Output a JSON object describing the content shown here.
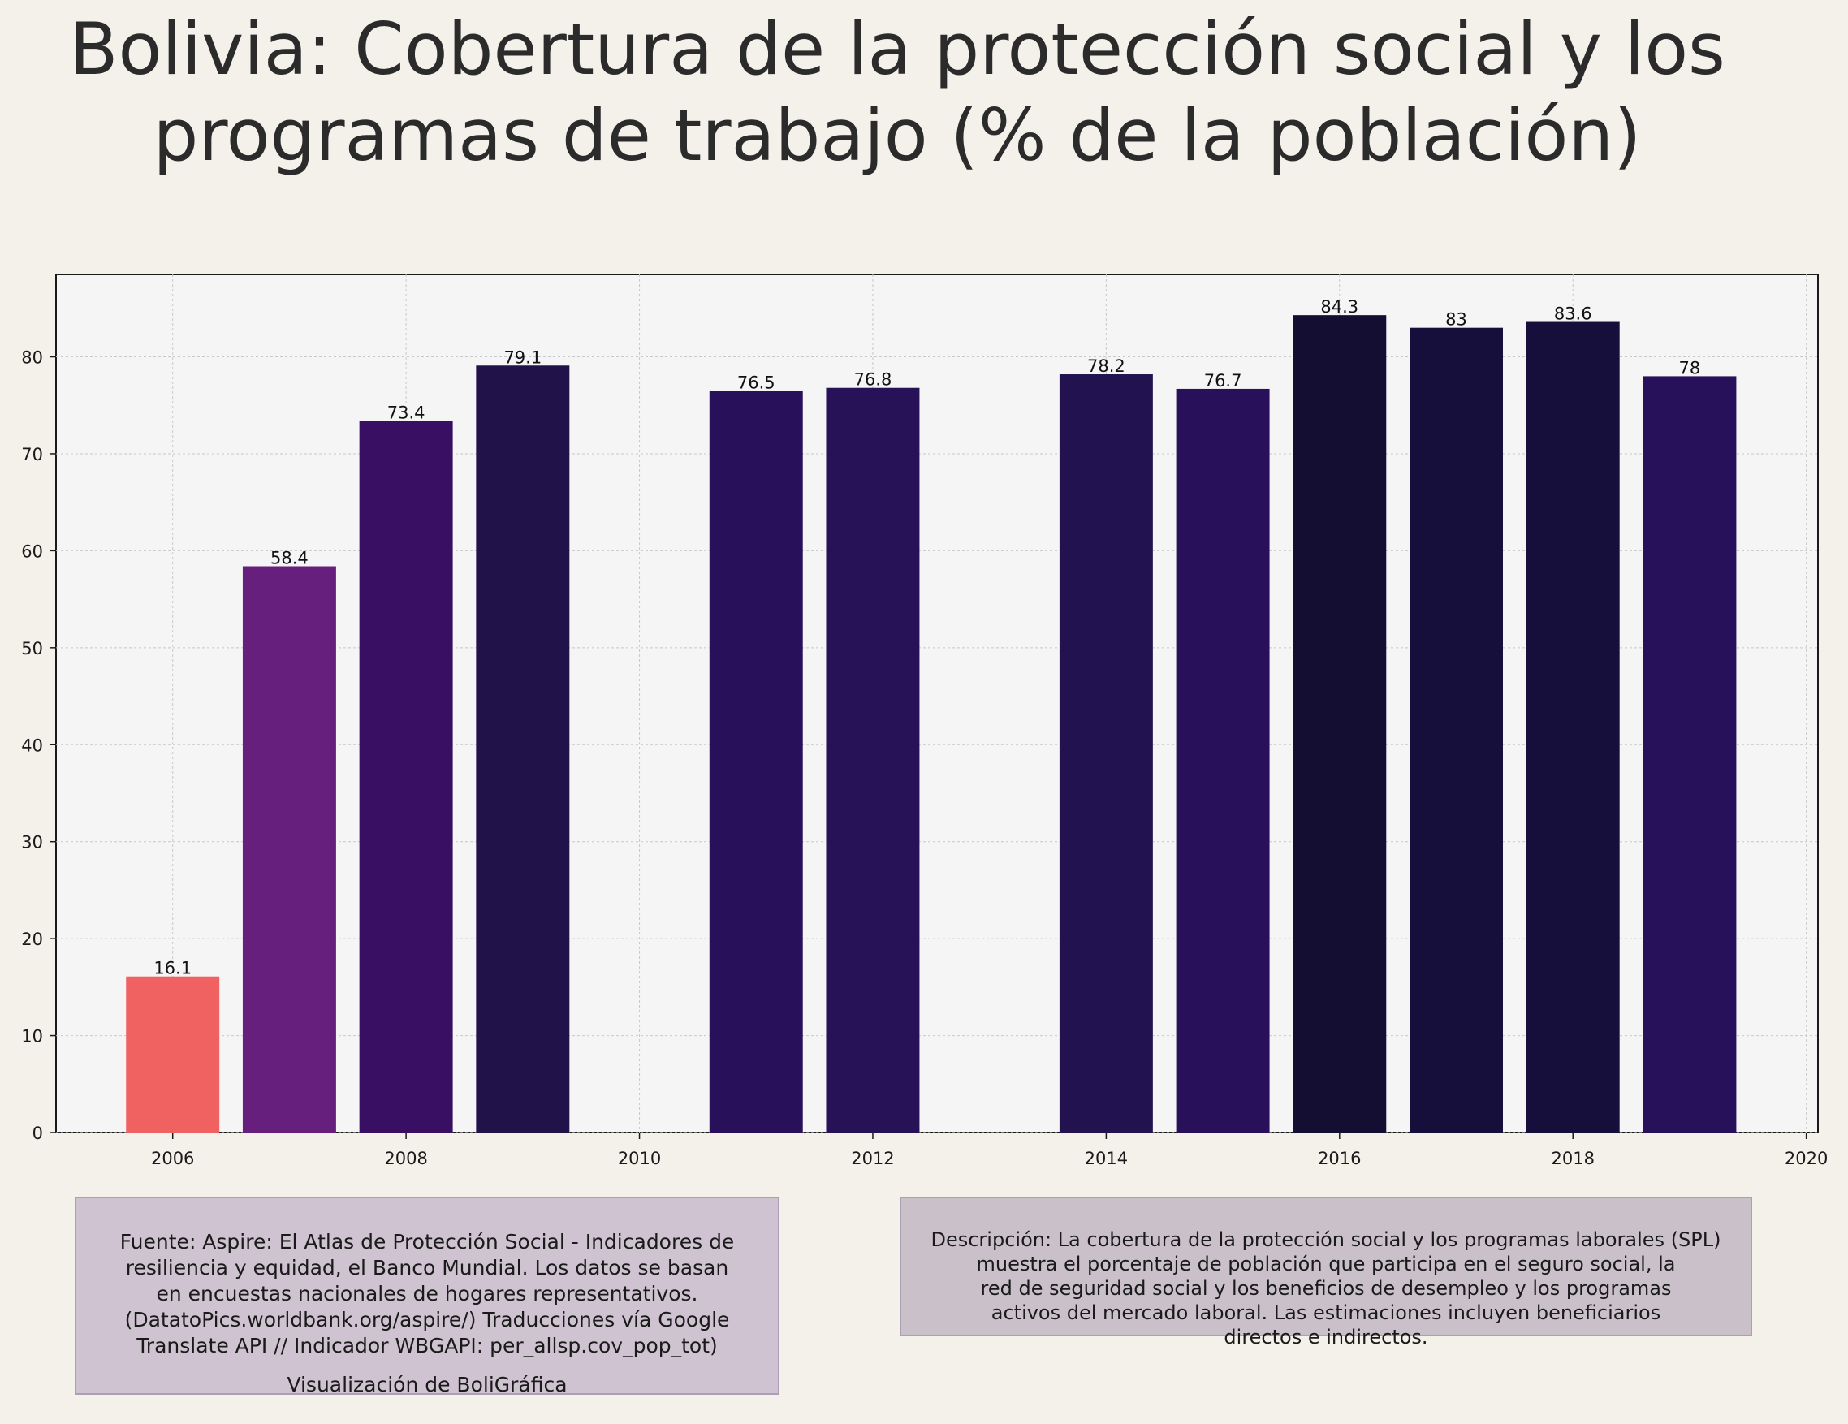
{
  "title": "Bolivia:  Cobertura de la protección social y los\nprogramas de trabajo (% de la población)",
  "chart_data": {
    "type": "bar",
    "x": [
      2006,
      2007,
      2008,
      2009,
      2011,
      2012,
      2014,
      2015,
      2016,
      2017,
      2018,
      2019
    ],
    "values": [
      16.1,
      58.4,
      73.4,
      79.1,
      76.5,
      76.8,
      78.2,
      76.7,
      84.3,
      83,
      83.6,
      78
    ],
    "data_labels": [
      "16.1",
      "58.4",
      "73.4",
      "79.1",
      "76.5",
      "76.8",
      "78.2",
      "76.7",
      "84.3",
      "83",
      "83.6",
      "78"
    ],
    "bar_colors": [
      "#f06262",
      "#671f7e",
      "#380f62",
      "#22124a",
      "#28115a",
      "#271157",
      "#231250",
      "#28115a",
      "#140e33",
      "#170f3b",
      "#170f3b",
      "#27115a"
    ],
    "xlim": [
      2005,
      2020.1
    ],
    "ylim": [
      0,
      88.5
    ],
    "x_ticks": [
      "2006",
      "2008",
      "2010",
      "2012",
      "2014",
      "2016",
      "2018",
      "2020"
    ],
    "y_ticks": [
      "0",
      "10",
      "20",
      "30",
      "40",
      "50",
      "60",
      "70",
      "80"
    ],
    "grid": true,
    "xlabel": "",
    "ylabel": ""
  },
  "source_box": {
    "text": "Fuente: Aspire: El Atlas de Protección Social - Indicadores de\nresiliencia y equidad, el Banco Mundial. Los datos se basan\nen encuestas nacionales de hogares representativos.\n(DatatoPics.worldbank.org/aspire/) Traducciones vía Google\nTranslate API // Indicador WBGAPI: per_allsp.cov_pop_tot)",
    "credit": "Visualización de BoliGráfica"
  },
  "description_box": {
    "text": "Descripción: La cobertura de la protección social y los programas laborales (SPL)\nmuestra el porcentaje de población que participa en el seguro social, la\nred de seguridad social y los beneficios de desempleo y los programas\nactivos del mercado laboral. Las estimaciones incluyen beneficiarios\ndirectos e indirectos."
  },
  "colors": {
    "page_background": "#f4f0ea",
    "plot_background": "#f5f5f6",
    "grid": "#c8c8c8",
    "axis": "#1a1a1a"
  }
}
